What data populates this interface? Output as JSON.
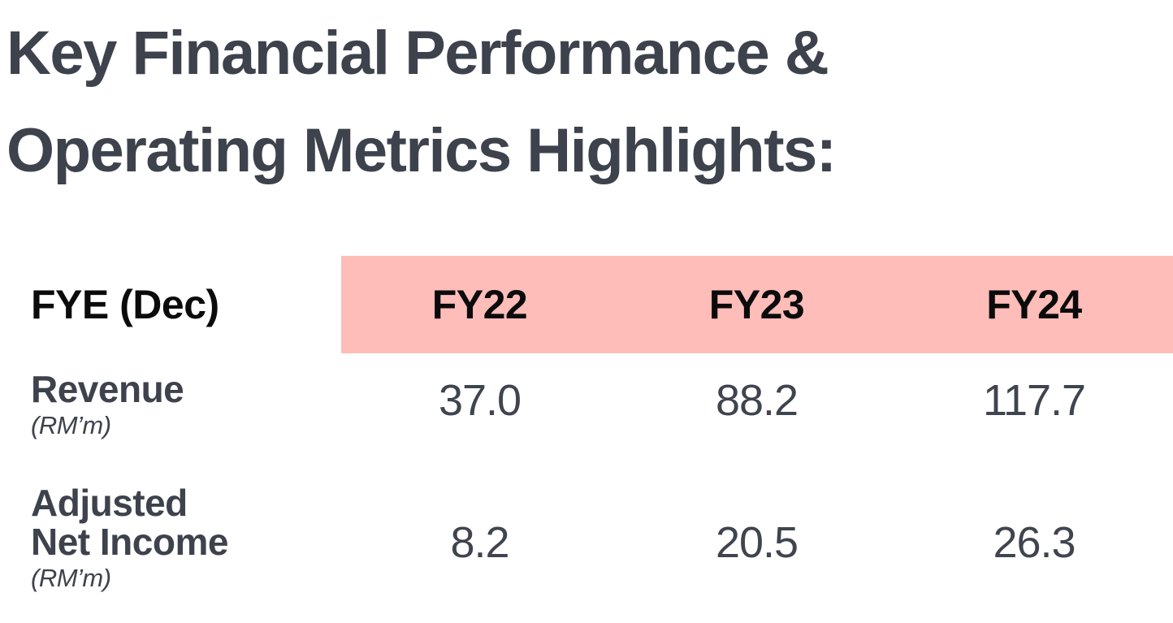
{
  "title": {
    "line1": "Key Financial Performance &",
    "line2": "Operating Metrics Highlights:"
  },
  "colors": {
    "accent_pink": "#ffbdb9",
    "text_dark": "#3d424c",
    "header_text": "#0b0b0c",
    "background": "#ffffff"
  },
  "table": {
    "header": {
      "label": "FYE (Dec)",
      "columns": [
        "FY22",
        "FY23",
        "FY24"
      ]
    },
    "rows": [
      {
        "name": "Revenue",
        "unit": "(RM’m)",
        "values": [
          "37.0",
          "88.2",
          "117.7"
        ]
      },
      {
        "name": "Adjusted Net Income",
        "unit": "(RM’m)",
        "values": [
          "8.2",
          "20.5",
          "26.3"
        ]
      }
    ]
  },
  "chart_data": {
    "type": "table",
    "title": "Key Financial Performance & Operating Metrics Highlights:",
    "categories": [
      "FY22",
      "FY23",
      "FY24"
    ],
    "series": [
      {
        "name": "Revenue (RM’m)",
        "values": [
          37.0,
          88.2,
          117.7
        ]
      },
      {
        "name": "Adjusted Net Income (RM’m)",
        "values": [
          8.2,
          20.5,
          26.3
        ]
      }
    ],
    "layout": {
      "header_fill": "#ffbdb9",
      "header_text_color": "#0b0b0c",
      "body_text_color": "#3d424c",
      "grid": false
    }
  }
}
